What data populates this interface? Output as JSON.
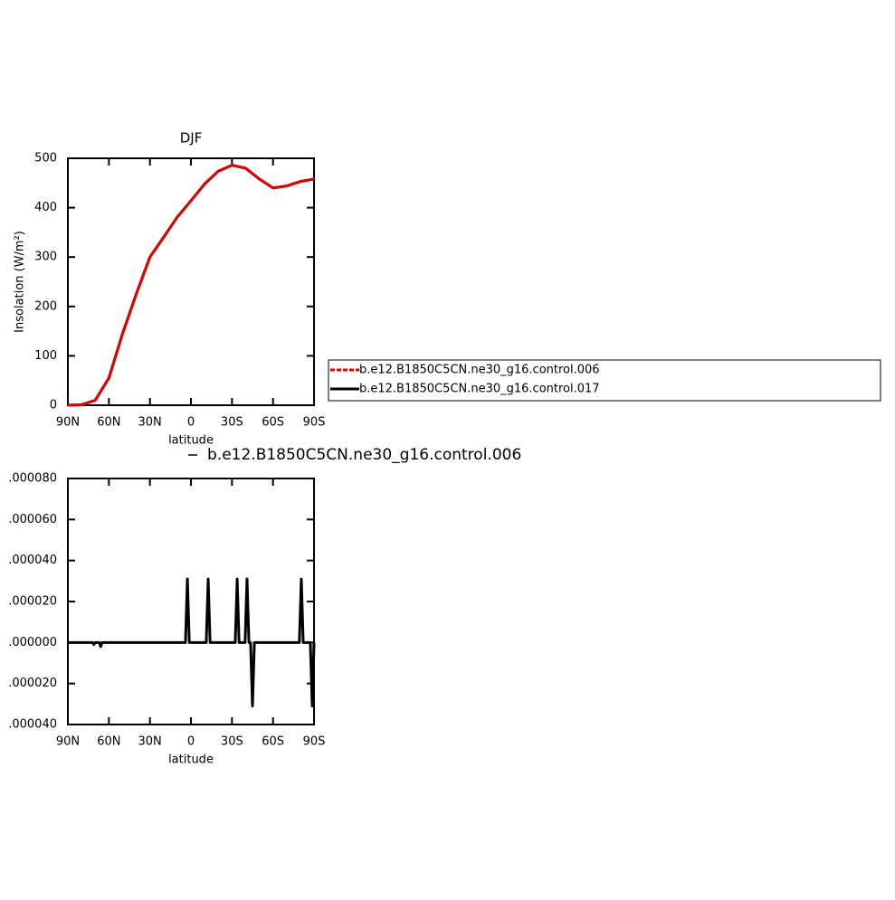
{
  "chart_data": [
    {
      "type": "line",
      "title": "DJF",
      "xlabel": "latitude",
      "ylabel": "Insolation (W/m²)",
      "x": [
        90,
        80,
        70,
        60,
        50,
        40,
        30,
        20,
        10,
        0,
        -10,
        -20,
        -30,
        -40,
        -50,
        -60,
        -70,
        -80,
        -90
      ],
      "series": [
        {
          "name": "b.e12.B1850C5CN.ne30_g16.control.006",
          "color": "#e00000",
          "dashed": true,
          "values": [
            0,
            1,
            10,
            55,
            145,
            225,
            300,
            340,
            381,
            414,
            448,
            474,
            486,
            480,
            458,
            440,
            444,
            453,
            458
          ]
        },
        {
          "name": "b.e12.B1850C5CN.ne30_g16.control.017",
          "color": "#000000",
          "dashed": false,
          "values": [
            0,
            1,
            10,
            55,
            145,
            225,
            300,
            340,
            381,
            414,
            448,
            474,
            486,
            480,
            458,
            440,
            444,
            453,
            458
          ]
        }
      ],
      "xlim": [
        90,
        -90
      ],
      "xticks": [
        {
          "value": 90,
          "label": "90N"
        },
        {
          "value": 60,
          "label": "60N"
        },
        {
          "value": 30,
          "label": "30N"
        },
        0,
        {
          "value": -30,
          "label": "30S"
        },
        {
          "value": -60,
          "label": "60S"
        },
        {
          "value": -90,
          "label": "90S"
        }
      ],
      "ylim": [
        0,
        500
      ],
      "yticks": [
        0,
        100,
        200,
        300,
        400,
        500
      ],
      "legend": "right"
    },
    {
      "type": "line",
      "xlabel": "latitude",
      "x": [
        90,
        72,
        71,
        70,
        67,
        66,
        65,
        4,
        2.6,
        1.2,
        -11.2,
        -12.6,
        -14,
        -32.4,
        -33.8,
        -35.2,
        -39.6,
        -41,
        -42.4,
        -43.6,
        -45,
        -46.4,
        -79.3,
        -80.7,
        -82.1,
        -87.3,
        -88.7,
        -90
      ],
      "series": [
        {
          "name": "b.e12.B1850C5CN.ne30_g16.control.006",
          "color": "#000000",
          "dashed": false,
          "values": [
            0,
            0,
            -1e-06,
            0,
            0,
            -2e-06,
            0,
            0,
            3.1e-05,
            0,
            0,
            3.1e-05,
            0,
            0,
            3.1e-05,
            0,
            0,
            3.1e-05,
            0,
            0,
            -3.1e-05,
            0,
            0,
            3.1e-05,
            0,
            0,
            -3.1e-05,
            0
          ]
        }
      ],
      "xlim": [
        90,
        -90
      ],
      "xticks": [
        {
          "value": 90,
          "label": "90N"
        },
        {
          "value": 60,
          "label": "60N"
        },
        {
          "value": 30,
          "label": "30N"
        },
        0,
        {
          "value": -30,
          "label": "30S"
        },
        {
          "value": -60,
          "label": "60S"
        },
        {
          "value": -90,
          "label": "90S"
        }
      ],
      "ylim": [
        -4e-05,
        8e-05
      ],
      "yticks": [
        {
          "value": -4e-05,
          "label": ".000040"
        },
        {
          "value": -2e-05,
          "label": ".000020"
        },
        {
          "value": 0,
          "label": ".000000"
        },
        {
          "value": 2e-05,
          "label": ".000020"
        },
        {
          "value": 4e-05,
          "label": ".000040"
        },
        {
          "value": 6e-05,
          "label": ".000060"
        },
        {
          "value": 8e-05,
          "label": ".000080"
        }
      ],
      "legend": "top"
    }
  ]
}
